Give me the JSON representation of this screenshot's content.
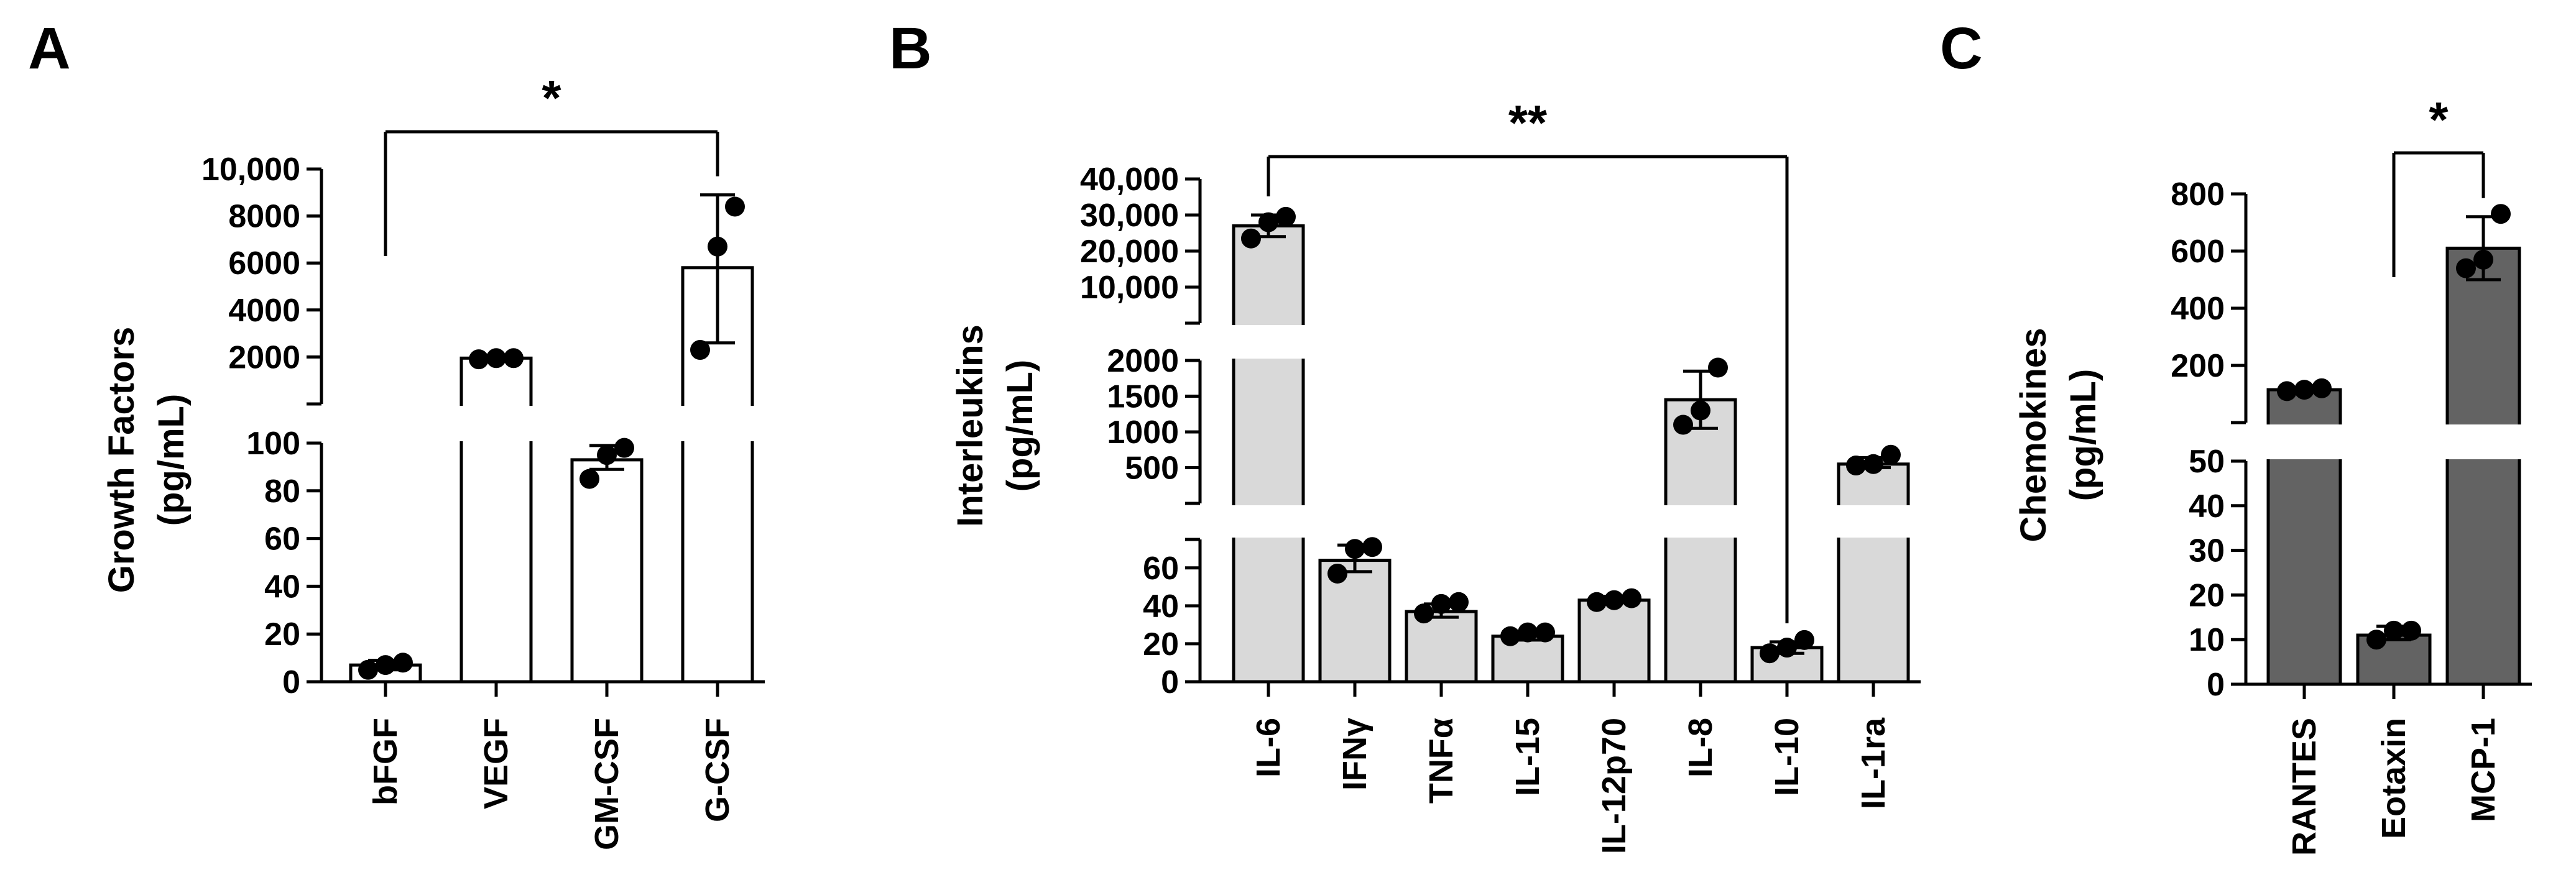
{
  "chart_data": [
    {
      "panel": "A",
      "type": "bar",
      "ylabel": [
        "Growth Factors",
        "(pg/mL)"
      ],
      "categories": [
        "bFGF",
        "VEGF",
        "GM-CSF",
        "G-CSF"
      ],
      "values": [
        7,
        1950,
        93,
        5800
      ],
      "error": [
        [
          5,
          9
        ],
        [
          1950,
          1950
        ],
        [
          89,
          99
        ],
        [
          2600,
          8900
        ]
      ],
      "points": [
        [
          5,
          7,
          8
        ],
        [
          1900,
          1950,
          1950
        ],
        [
          85,
          95,
          98
        ],
        [
          2300,
          6700,
          8400
        ]
      ],
      "bar_color": "#ffffff",
      "axis_lower": {
        "ylim": [
          0,
          100
        ],
        "ticks": [
          "0",
          "20",
          "40",
          "60",
          "80",
          "100"
        ]
      },
      "axis_upper": {
        "ylim": [
          0,
          10000
        ],
        "ticks": [
          "2000",
          "4000",
          "6000",
          "8000",
          "10,000"
        ]
      },
      "significance": {
        "from": "bFGF",
        "to": "G-CSF",
        "label": "*"
      }
    },
    {
      "panel": "B",
      "type": "bar",
      "ylabel": [
        "Interleukins",
        "(pg/mL)"
      ],
      "categories": [
        "IL-6",
        "IFNγ",
        "TNFα",
        "IL-15",
        "IL-12p70",
        "IL-8",
        "IL-10",
        "IL-1ra"
      ],
      "values": [
        27000,
        64,
        37,
        24,
        43,
        1450,
        18,
        550
      ],
      "error": [
        [
          24000,
          30000
        ],
        [
          58,
          72
        ],
        [
          34,
          41
        ],
        [
          22,
          26
        ],
        [
          42,
          45
        ],
        [
          1050,
          1850
        ],
        [
          15,
          21
        ],
        [
          500,
          640
        ]
      ],
      "points": [
        [
          23500,
          28000,
          29500
        ],
        [
          57,
          70,
          71
        ],
        [
          36,
          41,
          42
        ],
        [
          24,
          26,
          26
        ],
        [
          42,
          43,
          44
        ],
        [
          1100,
          1300,
          1900
        ],
        [
          15,
          18,
          22
        ],
        [
          530,
          550,
          680
        ]
      ],
      "bar_color": "#d9d9d9",
      "axis_lower": {
        "ylim": [
          0,
          75
        ],
        "ticks": [
          "0",
          "20",
          "40",
          "60"
        ]
      },
      "axis_middle": {
        "ylim": [
          0,
          2000
        ],
        "ticks": [
          "500",
          "1000",
          "1500",
          "2000"
        ]
      },
      "axis_upper": {
        "ylim": [
          0,
          40000
        ],
        "ticks": [
          "10,000",
          "20,000",
          "30,000",
          "40,000"
        ]
      },
      "significance": {
        "from": "IL-6",
        "to": "IL-10",
        "label": "**"
      }
    },
    {
      "panel": "C",
      "type": "bar",
      "ylabel": [
        "Chemokines",
        "(pg/mL)"
      ],
      "categories": [
        "RANTES",
        "Eotaxin",
        "MCP-1"
      ],
      "values": [
        115,
        11,
        610
      ],
      "error": [
        [
          110,
          120
        ],
        [
          10,
          13
        ],
        [
          500,
          720
        ]
      ],
      "points": [
        [
          110,
          115,
          120
        ],
        [
          10,
          12,
          12
        ],
        [
          540,
          570,
          730
        ]
      ],
      "bar_color": "#636363",
      "axis_lower": {
        "ylim": [
          0,
          50
        ],
        "ticks": [
          "0",
          "10",
          "20",
          "30",
          "40",
          "50"
        ]
      },
      "axis_upper": {
        "ylim": [
          0,
          800
        ],
        "ticks": [
          "200",
          "400",
          "600",
          "800"
        ]
      },
      "significance": {
        "from": "Eotaxin",
        "to": "MCP-1",
        "label": "*"
      }
    }
  ]
}
